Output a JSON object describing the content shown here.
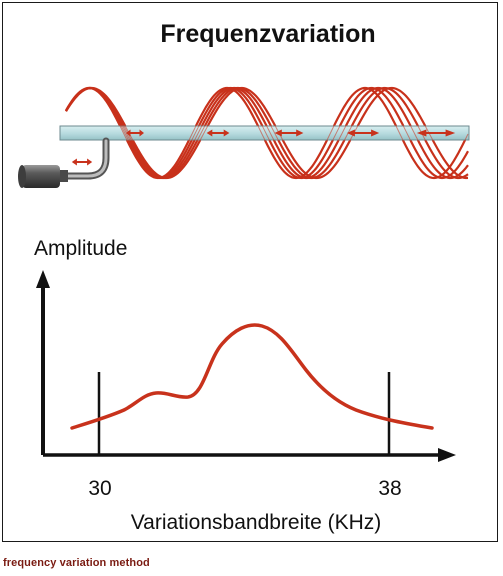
{
  "figure": {
    "title": "Frequenzvariation",
    "ylabel": "Amplitude",
    "xlabel": "Variationsbandbreite (KHz)",
    "tick_left": "30",
    "tick_right": "38"
  },
  "caption": "frequency variation method",
  "colors": {
    "wave": "#c8321c",
    "rod_fill": "#bde0e3",
    "rod_stroke": "#6c8a8f",
    "axis": "#111111",
    "caption": "#7a1b12"
  },
  "icons": {
    "transducer": "cylindrical-transducer-icon",
    "arrow": "double-headed-arrow-icon"
  }
}
